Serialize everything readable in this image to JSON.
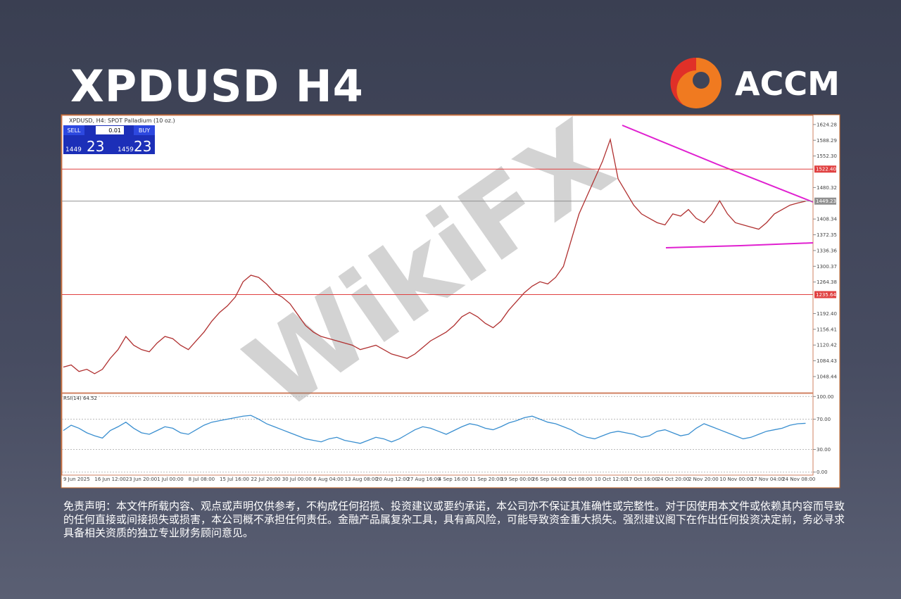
{
  "header": {
    "title": "XPDUSD H4",
    "logo": "ACCM"
  },
  "toolbar": {
    "symbol": "XPDUSD, H4:  SPOT Palladium (10 oz.)",
    "sell": "SELL",
    "buy": "BUY",
    "lot": "0.01",
    "sell_big": "1449",
    "sell_small": "23",
    "buy_big": "1459",
    "buy_small": "23"
  },
  "watermark": "WikiFX",
  "chart_data": [
    {
      "type": "line",
      "color": "#b03030",
      "categories": [
        "9 Jun 2025",
        null,
        null,
        null,
        "16 Jun 12:00",
        null,
        null,
        null,
        "23 Jun 20:00",
        null,
        null,
        null,
        "1 Jul 00:00",
        null,
        null,
        null,
        "8 Jul 08:00",
        null,
        null,
        null,
        "15 Jul 16:00",
        null,
        null,
        null,
        "22 Jul 20:00",
        null,
        null,
        null,
        "30 Jul 00:00",
        null,
        null,
        null,
        "6 Aug 04:00",
        null,
        null,
        null,
        "13 Aug 08:00",
        null,
        null,
        null,
        "20 Aug 12:00",
        null,
        null,
        null,
        "27 Aug 16:00",
        null,
        null,
        null,
        "4 Sep 16:00",
        null,
        null,
        null,
        "11 Sep 20:00",
        null,
        null,
        null,
        "19 Sep 00:00",
        null,
        null,
        null,
        "26 Sep 04:00",
        null,
        null,
        null,
        "3 Oct 08:00",
        null,
        null,
        null,
        "10 Oct 12:00",
        null,
        null,
        null,
        "17 Oct 16:00",
        null,
        null,
        null,
        "24 Oct 20:00",
        null,
        null,
        null,
        "2 Nov 20:00",
        null,
        null,
        null,
        "10 Nov 00:00",
        null,
        null,
        null,
        "17 Nov 04:00",
        null,
        null,
        null,
        "24 Nov 08:00",
        null,
        null,
        null
      ],
      "values": [
        1070,
        1075,
        1060,
        1065,
        1055,
        1065,
        1090,
        1110,
        1140,
        1120,
        1110,
        1105,
        1125,
        1140,
        1135,
        1120,
        1110,
        1130,
        1150,
        1175,
        1195,
        1210,
        1230,
        1265,
        1280,
        1275,
        1260,
        1240,
        1230,
        1215,
        1190,
        1165,
        1150,
        1140,
        1135,
        1130,
        1125,
        1120,
        1110,
        1115,
        1120,
        1110,
        1100,
        1095,
        1090,
        1100,
        1115,
        1130,
        1140,
        1150,
        1165,
        1185,
        1195,
        1185,
        1170,
        1160,
        1175,
        1200,
        1220,
        1240,
        1255,
        1265,
        1260,
        1275,
        1300,
        1360,
        1420,
        1460,
        1500,
        1540,
        1590,
        1500,
        1470,
        1440,
        1420,
        1410,
        1400,
        1395,
        1420,
        1415,
        1430,
        1410,
        1400,
        1420,
        1450,
        1420,
        1400,
        1395,
        1390,
        1385,
        1400,
        1420,
        1430,
        1440,
        1445,
        1449
      ],
      "ylim": [
        1013,
        1645
      ],
      "yticks": [
        1048.44,
        1084.43,
        1120.42,
        1156.41,
        {
          "value": 1192.4,
          "label": "1192.40"
        },
        1264.38,
        1300.37,
        1336.36,
        1372.35,
        1408.34,
        1480.32,
        {
          "value": 1552.3,
          "label": "1552.30"
        },
        1588.29,
        1624.28
      ],
      "levels": [
        {
          "value": 1522.4,
          "label": "1522.40",
          "color": "#e04040"
        },
        {
          "value": 1449.23,
          "label": "1449.23",
          "color": "#909090"
        },
        {
          "value": 1235.64,
          "label": "1235.64",
          "color": "#e04040"
        }
      ]
    },
    {
      "type": "line",
      "title": "RSI(14) 64.52",
      "color": "#3a8fd0",
      "values": [
        55,
        62,
        58,
        52,
        48,
        45,
        55,
        60,
        66,
        58,
        52,
        50,
        55,
        60,
        58,
        52,
        50,
        56,
        62,
        66,
        68,
        70,
        72,
        74,
        75,
        70,
        64,
        60,
        56,
        52,
        48,
        44,
        42,
        40,
        44,
        46,
        42,
        40,
        38,
        42,
        46,
        44,
        40,
        44,
        50,
        56,
        60,
        58,
        54,
        50,
        55,
        60,
        64,
        62,
        58,
        56,
        60,
        65,
        68,
        72,
        74,
        70,
        66,
        64,
        60,
        56,
        50,
        46,
        44,
        48,
        52,
        54,
        52,
        50,
        46,
        48,
        54,
        56,
        52,
        48,
        50,
        58,
        64,
        60,
        56,
        52,
        48,
        44,
        46,
        50,
        54,
        56,
        58,
        62,
        64,
        64.52
      ],
      "ylim": [
        -4,
        104
      ],
      "yticks": [
        {
          "value": 100,
          "label": "100.00"
        },
        {
          "value": 70,
          "label": "70.00"
        },
        {
          "value": 30,
          "label": "30.00"
        },
        {
          "value": 0,
          "label": "0.00"
        }
      ]
    }
  ],
  "disclaimer": "免责声明：本文件所载内容、观点或声明仅供参考，不构成任何招揽、投资建议或要约承诺，本公司亦不保证其准确性或完整性。对于因使用本文件或依赖其内容而导致的任何直接或间接损失或损害，本公司概不承担任何责任。金融产品属复杂工具，具有高风险，可能导致资金重大损失。强烈建议阁下在作出任何投资决定前，务必寻求具备相关资质的独立专业财务顾问意见。"
}
